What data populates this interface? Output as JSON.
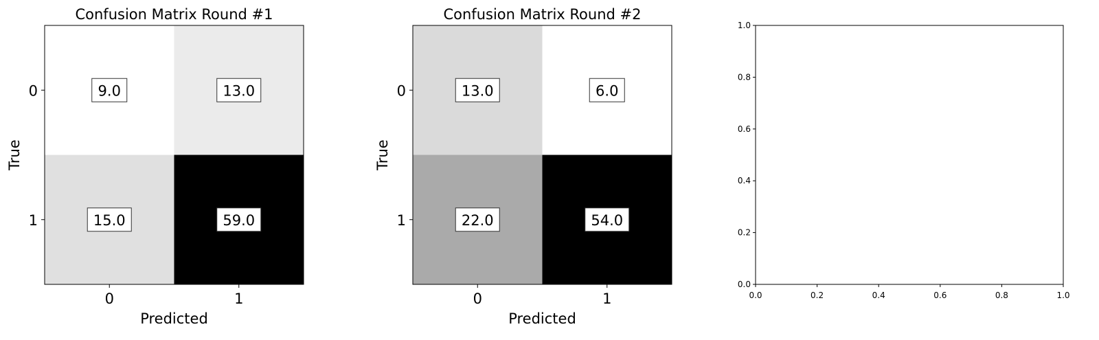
{
  "chart_data": [
    {
      "type": "heatmap",
      "title": "Confusion Matrix Round #1",
      "xlabel": "Predicted",
      "ylabel": "True",
      "x_categories": [
        "0",
        "1"
      ],
      "y_categories": [
        "0",
        "1"
      ],
      "matrix": [
        [
          9.0,
          13.0
        ],
        [
          15.0,
          59.0
        ]
      ],
      "cell_labels": [
        [
          "9.0",
          "13.0"
        ],
        [
          "15.0",
          "59.0"
        ]
      ],
      "colormap": "Greys"
    },
    {
      "type": "heatmap",
      "title": "Confusion Matrix Round #2",
      "xlabel": "Predicted",
      "ylabel": "True",
      "x_categories": [
        "0",
        "1"
      ],
      "y_categories": [
        "0",
        "1"
      ],
      "matrix": [
        [
          13.0,
          6.0
        ],
        [
          22.0,
          54.0
        ]
      ],
      "cell_labels": [
        [
          "13.0",
          "6.0"
        ],
        [
          "22.0",
          "54.0"
        ]
      ],
      "colormap": "Greys"
    },
    {
      "type": "scatter",
      "title": "",
      "xlabel": "",
      "ylabel": "",
      "xlim": [
        0.0,
        1.0
      ],
      "ylim": [
        0.0,
        1.0
      ],
      "xticks": [
        "0.0",
        "0.2",
        "0.4",
        "0.6",
        "0.8",
        "1.0"
      ],
      "yticks": [
        "0.0",
        "0.2",
        "0.4",
        "0.6",
        "0.8",
        "1.0"
      ],
      "series": []
    }
  ]
}
